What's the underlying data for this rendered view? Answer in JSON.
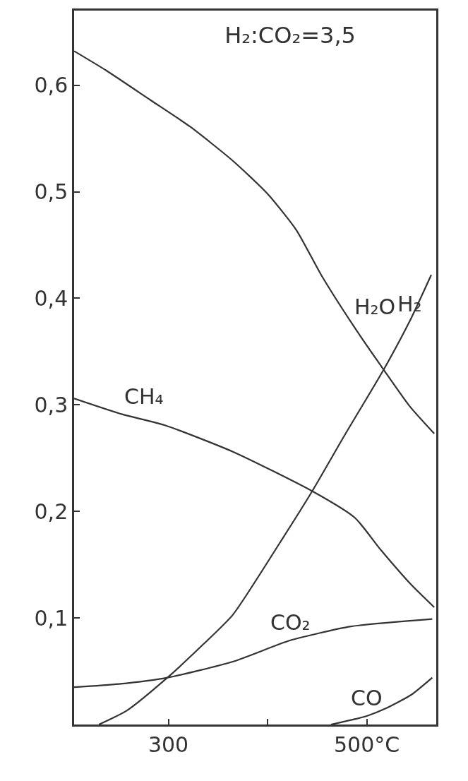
{
  "chart_data": {
    "type": "line",
    "title": "H₂:CO₂=3,5",
    "xlim": [
      205,
      570
    ],
    "ylim": [
      0,
      0.67
    ],
    "xticks": [
      300,
      {
        "value": 400,
        "label": null
      },
      {
        "value": 500,
        "label": "500°C"
      }
    ],
    "yticks": [
      {
        "value": 0.1,
        "label": "0,1"
      },
      {
        "value": 0.2,
        "label": "0,2"
      },
      {
        "value": 0.3,
        "label": "0,3"
      },
      {
        "value": 0.4,
        "label": "0,4"
      },
      {
        "value": 0.5,
        "label": "0,5"
      },
      {
        "value": 0.6,
        "label": "0,6"
      }
    ],
    "grid": false,
    "legend": false,
    "marker": "none",
    "line_style": "solid",
    "series": [
      {
        "name": "H₂O",
        "color": "#333333",
        "x": [
          205,
          237,
          282,
          322,
          365,
          400,
          429,
          454,
          486,
          517,
          543,
          568
        ],
        "values": [
          0.632,
          0.614,
          0.586,
          0.561,
          0.529,
          0.498,
          0.464,
          0.422,
          0.375,
          0.333,
          0.299,
          0.273
        ]
      },
      {
        "name": "H₂",
        "color": "#333333",
        "x": [
          230,
          258,
          299,
          336,
          365,
          412,
          445,
          478,
          517,
          543,
          565
        ],
        "values": [
          0,
          0.013,
          0.044,
          0.076,
          0.103,
          0.17,
          0.219,
          0.272,
          0.333,
          0.378,
          0.422
        ]
      },
      {
        "name": "CH₄",
        "color": "#333333",
        "x": [
          205,
          254,
          296,
          365,
          445,
          488,
          514,
          545,
          568
        ],
        "values": [
          0.306,
          0.291,
          0.281,
          0.256,
          0.219,
          0.194,
          0.164,
          0.131,
          0.11
        ]
      },
      {
        "name": "CO₂",
        "color": "#333333",
        "x": [
          205,
          250,
          299,
          365,
          423,
          484,
          566
        ],
        "values": [
          0.035,
          0.038,
          0.044,
          0.059,
          0.079,
          0.092,
          0.099
        ]
      },
      {
        "name": "CO",
        "color": "#333333",
        "x": [
          464,
          500,
          519,
          545,
          566
        ],
        "values": [
          0,
          0.008,
          0.015,
          0.028,
          0.044
        ]
      }
    ]
  }
}
